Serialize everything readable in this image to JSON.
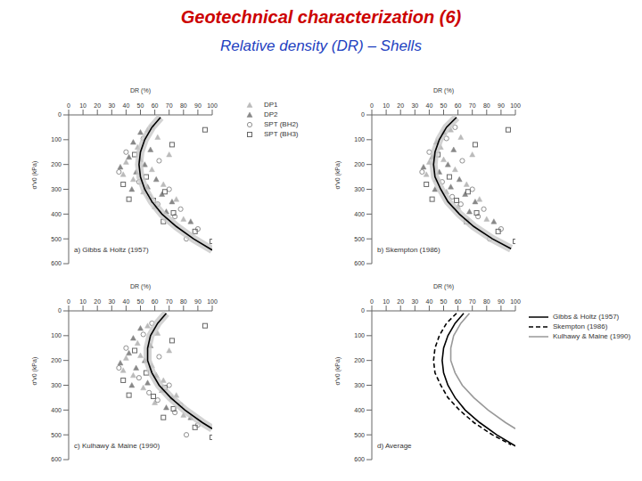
{
  "title": "Geotechnical characterization (6)",
  "subtitle": "Relative density (DR) – Shells",
  "chart_data": [
    {
      "type": "scatter",
      "title": "a) Gibbs & Holtz (1957)",
      "x_label": "DR (%)",
      "y_label": "σ'v0 (kPa)",
      "xlim": [
        0,
        100
      ],
      "xticks": [
        0,
        10,
        20,
        30,
        40,
        50,
        60,
        70,
        80,
        90,
        100
      ],
      "ylim": [
        0,
        600
      ],
      "yticks": [
        0,
        100,
        200,
        300,
        400,
        500,
        600
      ],
      "legend": "right",
      "series": [
        {
          "name": "DP1",
          "type": "scatter",
          "marker": "triangle",
          "color": "#bbbbbb",
          "x": [
            55,
            62,
            48,
            70,
            40,
            58,
            45,
            66,
            52,
            75,
            60,
            80,
            50,
            38
          ],
          "y": [
            60,
            90,
            130,
            160,
            190,
            220,
            260,
            280,
            310,
            340,
            370,
            420,
            180,
            240
          ]
        },
        {
          "name": "DP2",
          "type": "scatter",
          "marker": "triangle",
          "color": "#888888",
          "x": [
            50,
            45,
            57,
            42,
            53,
            47,
            61,
            55,
            65,
            72,
            68,
            85,
            44,
            36
          ],
          "y": [
            70,
            110,
            140,
            170,
            200,
            230,
            260,
            290,
            320,
            350,
            390,
            430,
            300,
            210
          ]
        },
        {
          "name": "SPT (BH2)",
          "type": "scatter",
          "marker": "circle",
          "color": "#909090",
          "x": [
            58,
            52,
            40,
            63,
            35,
            49,
            70,
            56,
            62,
            78,
            74,
            90,
            82
          ],
          "y": [
            50,
            95,
            150,
            185,
            230,
            270,
            300,
            330,
            360,
            380,
            410,
            460,
            500
          ]
        },
        {
          "name": "SPT (BH3)",
          "type": "scatter",
          "marker": "square",
          "color": "#666666",
          "x": [
            95,
            72,
            46,
            54,
            38,
            67,
            59,
            73,
            88,
            100,
            66,
            42
          ],
          "y": [
            60,
            120,
            160,
            250,
            280,
            310,
            345,
            395,
            470,
            510,
            430,
            340
          ]
        },
        {
          "type": "line",
          "line_style": "solid",
          "color": "#000000",
          "x": [
            64,
            58,
            53,
            50,
            49,
            50,
            53,
            58,
            65,
            75,
            87,
            100
          ],
          "y": [
            10,
            50,
            100,
            150,
            200,
            250,
            300,
            350,
            400,
            450,
            500,
            545
          ]
        }
      ]
    },
    {
      "type": "scatter",
      "title": "b) Skempton (1986)",
      "x_label": "DR (%)",
      "y_label": "σ'v0 (kPa)",
      "xlim": [
        0,
        100
      ],
      "xticks": [
        0,
        10,
        20,
        30,
        40,
        50,
        60,
        70,
        80,
        90,
        100
      ],
      "ylim": [
        0,
        600
      ],
      "yticks": [
        0,
        100,
        200,
        300,
        400,
        500,
        600
      ],
      "series": [
        {
          "name": "DP1",
          "type": "scatter",
          "marker": "triangle",
          "color": "#bbbbbb",
          "x": [
            55,
            62,
            48,
            70,
            40,
            58,
            45,
            66,
            52,
            75,
            60,
            80,
            50,
            38
          ],
          "y": [
            60,
            90,
            130,
            160,
            190,
            220,
            260,
            280,
            310,
            340,
            370,
            420,
            180,
            240
          ]
        },
        {
          "name": "DP2",
          "type": "scatter",
          "marker": "triangle",
          "color": "#888888",
          "x": [
            50,
            45,
            57,
            42,
            53,
            47,
            61,
            55,
            65,
            72,
            68,
            85,
            44,
            36
          ],
          "y": [
            70,
            110,
            140,
            170,
            200,
            230,
            260,
            290,
            320,
            350,
            390,
            430,
            300,
            210
          ]
        },
        {
          "name": "SPT (BH2)",
          "type": "scatter",
          "marker": "circle",
          "color": "#909090",
          "x": [
            58,
            52,
            40,
            63,
            35,
            49,
            70,
            56,
            62,
            78,
            74,
            90,
            82
          ],
          "y": [
            50,
            95,
            150,
            185,
            230,
            270,
            300,
            330,
            360,
            380,
            410,
            460,
            500
          ]
        },
        {
          "name": "SPT (BH3)",
          "type": "scatter",
          "marker": "square",
          "color": "#666666",
          "x": [
            95,
            72,
            46,
            54,
            38,
            67,
            59,
            73,
            88,
            100,
            66,
            42
          ],
          "y": [
            60,
            120,
            160,
            250,
            280,
            310,
            345,
            395,
            470,
            510,
            430,
            340
          ]
        },
        {
          "type": "line",
          "line_style": "solid",
          "color": "#000000",
          "x": [
            59,
            52,
            47,
            44,
            43,
            44,
            48,
            53,
            61,
            71,
            84,
            97
          ],
          "y": [
            10,
            50,
            100,
            150,
            200,
            250,
            300,
            350,
            400,
            450,
            500,
            540
          ]
        }
      ]
    },
    {
      "type": "scatter",
      "title": "c) Kulhawy & Maine (1990)",
      "x_label": "DR (%)",
      "y_label": "σ'v0 (kPa)",
      "xlim": [
        0,
        100
      ],
      "xticks": [
        0,
        10,
        20,
        30,
        40,
        50,
        60,
        70,
        80,
        90,
        100
      ],
      "ylim": [
        0,
        600
      ],
      "yticks": [
        0,
        100,
        200,
        300,
        400,
        500,
        600
      ],
      "series": [
        {
          "name": "DP1",
          "type": "scatter",
          "marker": "triangle",
          "color": "#bbbbbb",
          "x": [
            55,
            62,
            48,
            70,
            40,
            58,
            45,
            66,
            52,
            75,
            60,
            80,
            50,
            38
          ],
          "y": [
            60,
            90,
            130,
            160,
            190,
            220,
            260,
            280,
            310,
            340,
            370,
            420,
            180,
            240
          ]
        },
        {
          "name": "DP2",
          "type": "scatter",
          "marker": "triangle",
          "color": "#888888",
          "x": [
            50,
            45,
            57,
            42,
            53,
            47,
            61,
            55,
            65,
            72,
            68,
            85,
            44,
            36
          ],
          "y": [
            70,
            110,
            140,
            170,
            200,
            230,
            260,
            290,
            320,
            350,
            390,
            430,
            300,
            210
          ]
        },
        {
          "name": "SPT (BH2)",
          "type": "scatter",
          "marker": "circle",
          "color": "#909090",
          "x": [
            58,
            52,
            40,
            63,
            35,
            49,
            70,
            56,
            62,
            78,
            74,
            90,
            82
          ],
          "y": [
            50,
            95,
            150,
            185,
            230,
            270,
            300,
            330,
            360,
            380,
            410,
            460,
            500
          ]
        },
        {
          "name": "SPT (BH3)",
          "type": "scatter",
          "marker": "square",
          "color": "#666666",
          "x": [
            95,
            72,
            46,
            54,
            38,
            67,
            59,
            73,
            88,
            100,
            66,
            42
          ],
          "y": [
            60,
            120,
            160,
            250,
            280,
            310,
            345,
            395,
            470,
            510,
            430,
            340
          ]
        },
        {
          "type": "line",
          "line_style": "solid",
          "color": "#000000",
          "x": [
            68,
            62,
            57,
            55,
            55,
            58,
            63,
            71,
            81,
            93,
            100
          ],
          "y": [
            10,
            50,
            100,
            150,
            200,
            250,
            300,
            350,
            400,
            450,
            475
          ]
        }
      ]
    },
    {
      "type": "line",
      "title": "d) Average",
      "x_label": "DR (%)",
      "y_label": "σ'v0 (kPa)",
      "xlim": [
        0,
        100
      ],
      "xticks": [
        0,
        10,
        20,
        30,
        40,
        50,
        60,
        70,
        80,
        90,
        100
      ],
      "ylim": [
        0,
        600
      ],
      "yticks": [
        0,
        100,
        200,
        300,
        400,
        500,
        600
      ],
      "legend": "right",
      "series": [
        {
          "name": "Gibbs & Holtz (1957)",
          "type": "line",
          "line_style": "solid",
          "color": "#000000",
          "x": [
            64,
            58,
            53,
            50,
            49,
            50,
            53,
            58,
            65,
            75,
            87,
            100
          ],
          "y": [
            10,
            50,
            100,
            150,
            200,
            250,
            300,
            350,
            400,
            450,
            500,
            545
          ]
        },
        {
          "name": "Skempton (1986)",
          "type": "line",
          "line_style": "dashed",
          "color": "#000000",
          "x": [
            59,
            52,
            47,
            44,
            43,
            44,
            48,
            53,
            61,
            71,
            84,
            97
          ],
          "y": [
            10,
            50,
            100,
            150,
            200,
            250,
            300,
            350,
            400,
            450,
            500,
            540
          ]
        },
        {
          "name": "Kulhawy & Maine (1990)",
          "type": "line",
          "line_style": "solid",
          "color": "#999999",
          "x": [
            68,
            62,
            57,
            55,
            55,
            58,
            63,
            71,
            81,
            93,
            100
          ],
          "y": [
            10,
            50,
            100,
            150,
            200,
            250,
            300,
            350,
            400,
            450,
            475
          ]
        }
      ]
    }
  ]
}
